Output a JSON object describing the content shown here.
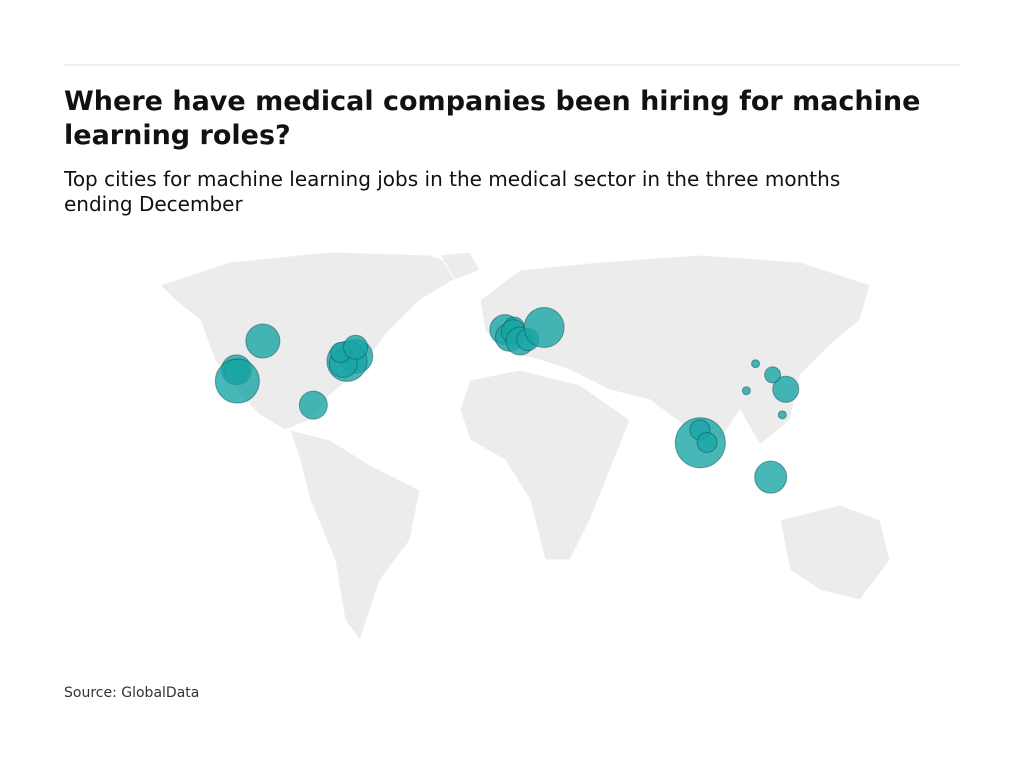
{
  "chart_data": {
    "type": "bubble-map",
    "title": "Where have medical companies been hiring for machine learning roles?",
    "subtitle": "Top cities for machine learning jobs in the medical sector in the three months ending December",
    "source": "Source: GlobalData",
    "color": "#1aa5a5",
    "points": [
      {
        "lon": -122.3,
        "lat": 47.6,
        "r": 17
      },
      {
        "lon": -122.4,
        "lat": 37.8,
        "r": 15
      },
      {
        "lon": -121.9,
        "lat": 37.3,
        "r": 12
      },
      {
        "lon": -118.2,
        "lat": 34.0,
        "r": 22
      },
      {
        "lon": -71.1,
        "lat": 42.4,
        "r": 17
      },
      {
        "lon": -74.0,
        "lat": 40.7,
        "r": 20
      },
      {
        "lon": -75.2,
        "lat": 40.0,
        "r": 14
      },
      {
        "lon": -79.4,
        "lat": 43.7,
        "r": 10
      },
      {
        "lon": -73.6,
        "lat": 45.5,
        "r": 12
      },
      {
        "lon": -80.2,
        "lat": 25.8,
        "r": 14
      },
      {
        "lon": -0.1,
        "lat": 51.5,
        "r": 15
      },
      {
        "lon": 2.3,
        "lat": 48.9,
        "r": 14
      },
      {
        "lon": 4.9,
        "lat": 52.4,
        "r": 10
      },
      {
        "lon": 4.4,
        "lat": 50.8,
        "r": 12
      },
      {
        "lon": 7.6,
        "lat": 47.6,
        "r": 14
      },
      {
        "lon": 11.6,
        "lat": 48.1,
        "r": 11
      },
      {
        "lon": 21.0,
        "lat": 52.2,
        "r": 20
      },
      {
        "lon": 77.6,
        "lat": 13.0,
        "r": 25
      },
      {
        "lon": 78.5,
        "lat": 17.4,
        "r": 10
      },
      {
        "lon": 80.3,
        "lat": 13.1,
        "r": 10
      },
      {
        "lon": 103.8,
        "lat": 1.3,
        "r": 16
      },
      {
        "lon": 116.4,
        "lat": 39.9,
        "r": 4
      },
      {
        "lon": 121.5,
        "lat": 31.2,
        "r": 13
      },
      {
        "lon": 120.2,
        "lat": 36.1,
        "r": 8
      },
      {
        "lon": 114.1,
        "lat": 22.5,
        "r": 4
      },
      {
        "lon": 104.1,
        "lat": 30.7,
        "r": 4
      }
    ]
  }
}
